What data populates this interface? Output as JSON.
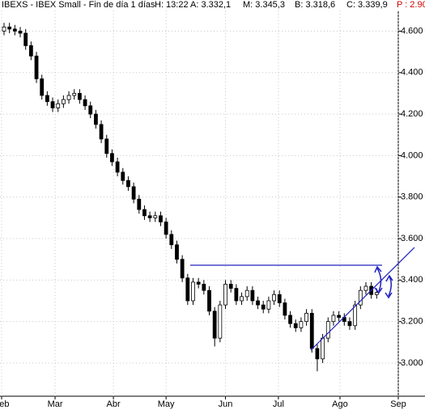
{
  "chart_data": {
    "type": "candlestick",
    "header": {
      "title": "IBEXS - IBEX Small - Fin de día 1 días",
      "hour": "H: 13:22",
      "open": "A: 3.332,1",
      "high": "M: 3.345,3",
      "low": "B: 3.318,6",
      "close": "C: 3.339,9",
      "change": "P : 2.90"
    },
    "x": [
      0,
      1,
      2,
      3,
      4,
      5,
      6,
      7,
      8,
      9,
      10,
      11,
      12,
      13,
      14,
      15,
      16,
      17,
      18,
      19,
      20,
      21,
      22,
      23,
      24,
      25,
      26,
      27,
      28,
      29,
      30,
      31,
      32,
      33,
      34,
      35,
      36,
      37,
      38,
      39,
      40,
      41,
      42,
      43,
      44,
      45,
      46,
      47,
      48,
      49,
      50,
      51,
      52,
      53,
      54,
      55,
      56,
      57,
      58,
      59,
      60,
      61,
      62,
      63,
      64,
      65,
      66,
      67,
      68,
      69
    ],
    "open": [
      4600,
      4620,
      4610,
      4600,
      4590,
      4530,
      4480,
      4370,
      4290,
      4260,
      4230,
      4250,
      4270,
      4290,
      4300,
      4270,
      4240,
      4200,
      4150,
      4080,
      4010,
      3970,
      3920,
      3880,
      3850,
      3790,
      3740,
      3710,
      3700,
      3710,
      3680,
      3620,
      3570,
      3500,
      3410,
      3300,
      3390,
      3380,
      3350,
      3250,
      3120,
      3280,
      3380,
      3360,
      3300,
      3320,
      3350,
      3300,
      3280,
      3260,
      3300,
      3330,
      3290,
      3230,
      3190,
      3170,
      3200,
      3240,
      3070,
      3020,
      3120,
      3200,
      3230,
      3220,
      3200,
      3180,
      3280,
      3350,
      3370,
      3330
    ],
    "high": [
      4640,
      4640,
      4630,
      4620,
      4610,
      4550,
      4500,
      4390,
      4310,
      4280,
      4270,
      4290,
      4310,
      4320,
      4320,
      4290,
      4260,
      4220,
      4170,
      4100,
      4030,
      3990,
      3940,
      3900,
      3870,
      3810,
      3760,
      3730,
      3730,
      3730,
      3700,
      3640,
      3590,
      3520,
      3430,
      3410,
      3410,
      3400,
      3370,
      3270,
      3300,
      3400,
      3400,
      3380,
      3340,
      3370,
      3370,
      3320,
      3300,
      3320,
      3350,
      3350,
      3310,
      3250,
      3210,
      3220,
      3260,
      3260,
      3090,
      3140,
      3220,
      3250,
      3250,
      3240,
      3220,
      3300,
      3370,
      3390,
      3390,
      3360
    ],
    "low": [
      4580,
      4590,
      4580,
      4570,
      4510,
      4460,
      4350,
      4270,
      4240,
      4210,
      4210,
      4230,
      4250,
      4270,
      4250,
      4220,
      4180,
      4130,
      4060,
      3990,
      3950,
      3900,
      3860,
      3830,
      3770,
      3720,
      3690,
      3680,
      3680,
      3660,
      3600,
      3550,
      3480,
      3390,
      3280,
      3280,
      3360,
      3330,
      3230,
      3080,
      3100,
      3260,
      3340,
      3280,
      3280,
      3300,
      3280,
      3260,
      3240,
      3240,
      3280,
      3270,
      3210,
      3170,
      3150,
      3150,
      3180,
      3050,
      2960,
      3000,
      3100,
      3180,
      3200,
      3180,
      3160,
      3160,
      3260,
      3330,
      3310,
      3310
    ],
    "close": [
      4620,
      4610,
      4600,
      4590,
      4530,
      4480,
      4370,
      4290,
      4260,
      4230,
      4250,
      4270,
      4290,
      4300,
      4270,
      4240,
      4200,
      4150,
      4080,
      4010,
      3970,
      3920,
      3880,
      3850,
      3790,
      3740,
      3710,
      3700,
      3710,
      3680,
      3620,
      3570,
      3500,
      3410,
      3300,
      3390,
      3380,
      3350,
      3250,
      3120,
      3280,
      3380,
      3360,
      3300,
      3320,
      3350,
      3300,
      3280,
      3260,
      3300,
      3330,
      3290,
      3230,
      3190,
      3170,
      3200,
      3240,
      3070,
      3020,
      3120,
      3200,
      3230,
      3220,
      3200,
      3180,
      3280,
      3350,
      3370,
      3330,
      3340
    ],
    "xlim": [
      -0.75,
      73
    ],
    "xticks": [
      {
        "value": -0.45,
        "label": "Feb"
      },
      {
        "value": 9.45,
        "label": "Mar"
      },
      {
        "value": 20.25,
        "label": "Abr"
      },
      {
        "value": 30,
        "label": "May"
      },
      {
        "value": 41,
        "label": "Jun"
      },
      {
        "value": 50.8,
        "label": "Jul"
      },
      {
        "value": 62.2,
        "label": "Ago"
      },
      {
        "value": 73,
        "label": "Sep"
      }
    ],
    "ylim": [
      2840,
      4750
    ],
    "yticks": [
      {
        "value": 3000,
        "label": "3.000"
      },
      {
        "value": 3200,
        "label": "3.200"
      },
      {
        "value": 3400,
        "label": "3.400"
      },
      {
        "value": 3600,
        "label": "3.600"
      },
      {
        "value": 3800,
        "label": "3.800"
      },
      {
        "value": 4000,
        "label": "4.000"
      },
      {
        "value": 4200,
        "label": "4.200"
      },
      {
        "value": 4400,
        "label": "4.400"
      },
      {
        "value": 4600,
        "label": "4.600"
      }
    ],
    "grid": true,
    "color": "#000000"
  }
}
